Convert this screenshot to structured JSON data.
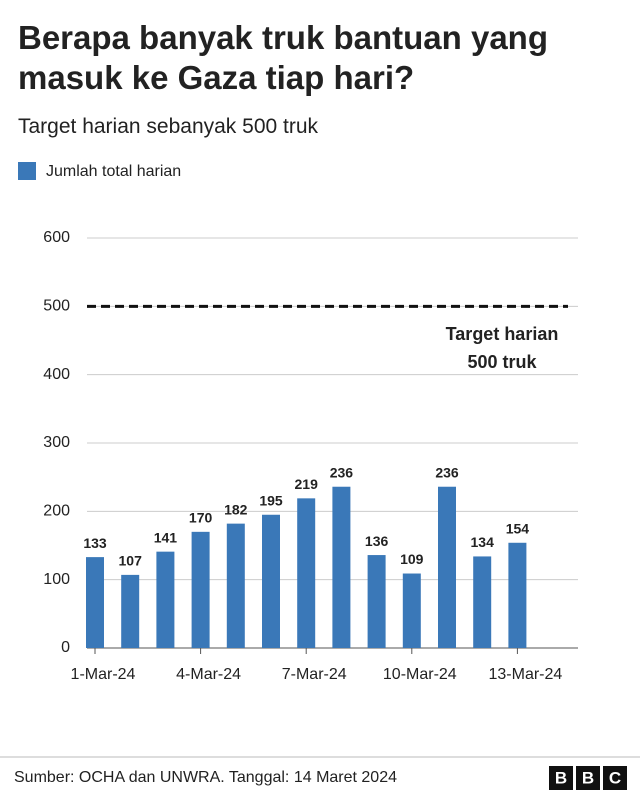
{
  "chart_data": {
    "type": "bar",
    "title": "Berapa banyak truk bantuan yang masuk ke Gaza tiap hari?",
    "subtitle": "Target harian sebanyak 500 truk",
    "categories": [
      "1-Mar-24",
      null,
      null,
      "4-Mar-24",
      null,
      null,
      "7-Mar-24",
      null,
      null,
      "10-Mar-24",
      null,
      null,
      "13-Mar-24"
    ],
    "series": [
      {
        "name": "Jumlah total harian",
        "color": "#3a78b8",
        "values": [
          133,
          107,
          141,
          170,
          182,
          195,
          219,
          236,
          136,
          109,
          236,
          134,
          154
        ]
      }
    ],
    "ylim": [
      0,
      600
    ],
    "yticks": [
      0,
      100,
      200,
      300,
      400,
      500,
      600
    ],
    "grid": true,
    "target": 500,
    "target_label": [
      "Target harian",
      "500 truk"
    ],
    "source": "Sumber: OCHA dan UNWRA. Tanggal: 14 Maret 2024",
    "logo": [
      "B",
      "B",
      "C"
    ]
  }
}
